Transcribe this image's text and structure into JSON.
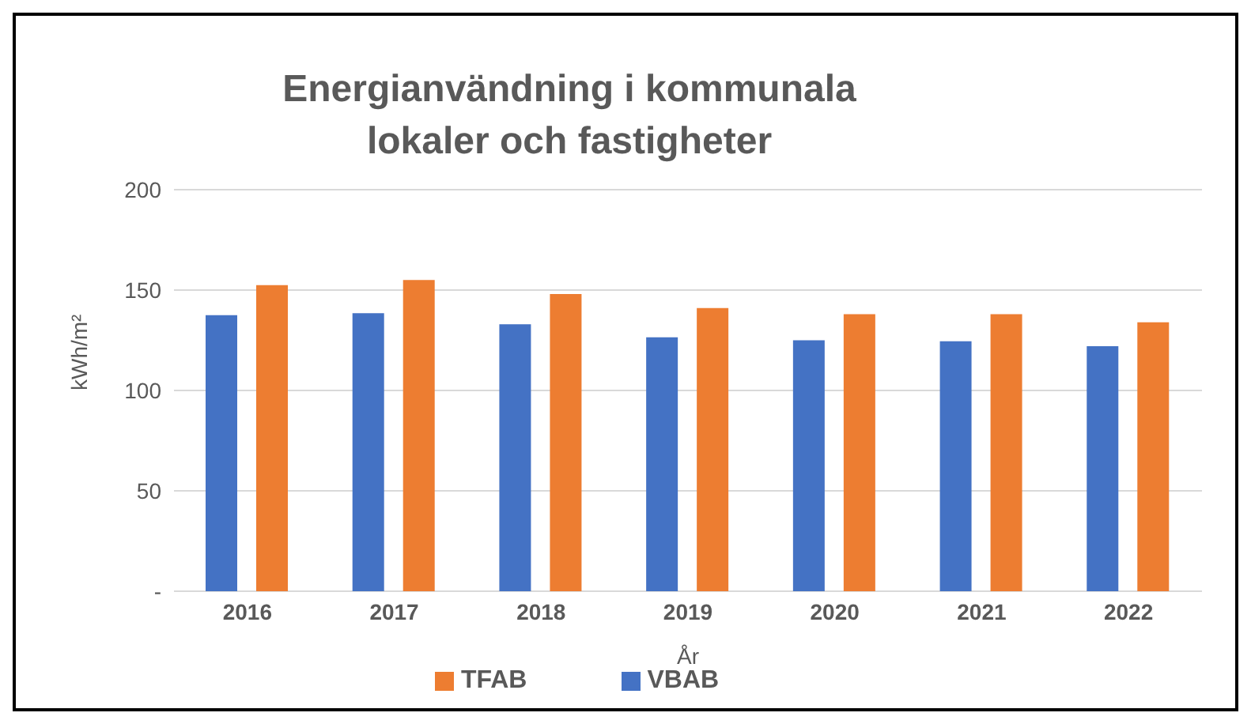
{
  "chart_data": {
    "type": "bar",
    "title": "Energianvändning i kommunala lokaler och fastigheter",
    "xlabel": "År",
    "ylabel": "kWh/m²",
    "categories": [
      "2016",
      "2017",
      "2018",
      "2019",
      "2020",
      "2021",
      "2022"
    ],
    "series": [
      {
        "name": "VBAB",
        "color": "#4472c4",
        "values": [
          137.5,
          138.5,
          133,
          126.5,
          125,
          124.5,
          122
        ]
      },
      {
        "name": "TFAB",
        "color": "#ed7d31",
        "values": [
          152.5,
          155,
          148,
          141,
          138,
          138,
          134
        ]
      }
    ],
    "ylim": [
      0,
      200
    ],
    "yticks": [
      {
        "value": 0,
        "label": "-"
      },
      50,
      100,
      150,
      200
    ],
    "grid": "y",
    "legend": "bottom"
  }
}
